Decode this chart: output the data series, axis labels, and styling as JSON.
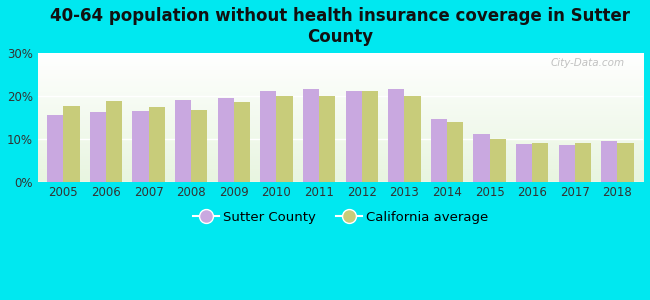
{
  "title": "40-64 population without health insurance coverage in Sutter\nCounty",
  "years": [
    2005,
    2006,
    2007,
    2008,
    2009,
    2010,
    2011,
    2012,
    2013,
    2014,
    2015,
    2016,
    2017,
    2018
  ],
  "sutter_county": [
    15.5,
    16.2,
    16.5,
    19.0,
    19.5,
    21.0,
    21.5,
    21.0,
    21.5,
    14.5,
    11.2,
    8.7,
    8.5,
    9.5
  ],
  "california_avg": [
    17.7,
    18.7,
    17.3,
    16.7,
    18.5,
    19.9,
    20.0,
    21.0,
    19.9,
    14.0,
    9.9,
    8.9,
    9.0,
    9.0
  ],
  "sutter_color": "#c9a8e0",
  "california_color": "#c8cc7a",
  "background_outer": "#00e8f0",
  "ylim": [
    0,
    30
  ],
  "yticks": [
    0,
    10,
    20,
    30
  ],
  "ytick_labels": [
    "0%",
    "10%",
    "20%",
    "30%"
  ],
  "legend_sutter": "Sutter County",
  "legend_california": "California average",
  "bar_width": 0.38,
  "title_fontsize": 12,
  "tick_fontsize": 8.5,
  "legend_fontsize": 9.5
}
